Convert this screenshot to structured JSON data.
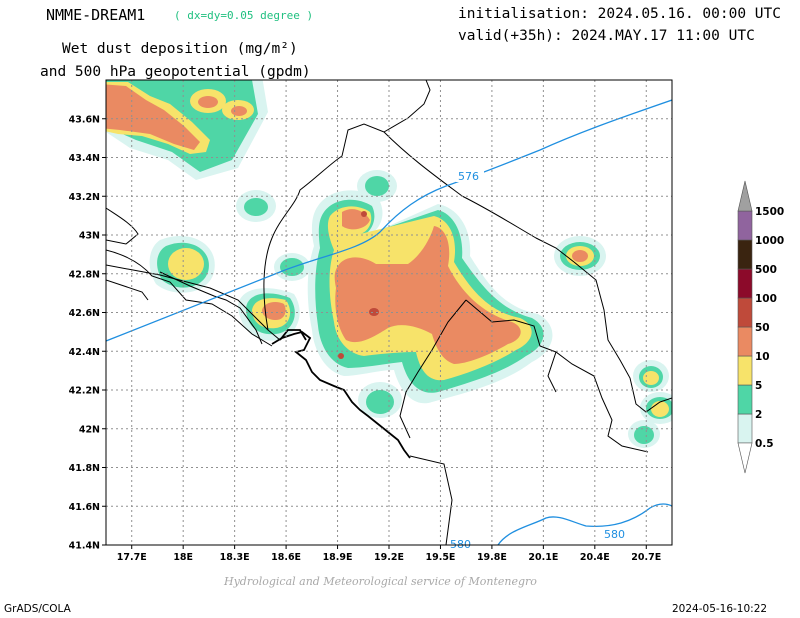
{
  "header": {
    "model_title": "NMME-DREAM1",
    "resolution_note": "( dx=dy=0.05 degree )",
    "field_line1": "Wet dust deposition (mg/m²)",
    "field_line2": "and 500 hPa geopotential (gpdm)",
    "init_text": "initialisation: 2024.05.16. 00:00 UTC",
    "valid_text": "valid(+35h): 2024.MAY.17 11:00 UTC"
  },
  "footer": {
    "credit": "Hydrological and Meteorological service of Montenegro",
    "software": "GrADS/COLA",
    "timestamp": "2024-05-16-10:22"
  },
  "map": {
    "lat_ticks": [
      "41.4N",
      "41.6N",
      "41.8N",
      "42N",
      "42.2N",
      "42.4N",
      "42.6N",
      "42.8N",
      "43N",
      "43.2N",
      "43.4N",
      "43.6N"
    ],
    "lon_ticks": [
      "17.7E",
      "18E",
      "18.3E",
      "18.6E",
      "18.9E",
      "19.2E",
      "19.5E",
      "19.8E",
      "20.1E",
      "20.4E",
      "20.7E"
    ],
    "contour_labels": [
      "576",
      "580",
      "580"
    ],
    "contour_color": "#1f8fe0"
  },
  "legend": {
    "levels": [
      "0.5",
      "2",
      "5",
      "10",
      "50",
      "100",
      "500",
      "1000",
      "1500"
    ],
    "colors": [
      "#d9f4f0",
      "#4fd6a6",
      "#f7e36a",
      "#ea8a62",
      "#bf4a3a",
      "#8c0a2a",
      "#3a2410",
      "#90649e",
      "#a0a0a0"
    ]
  }
}
